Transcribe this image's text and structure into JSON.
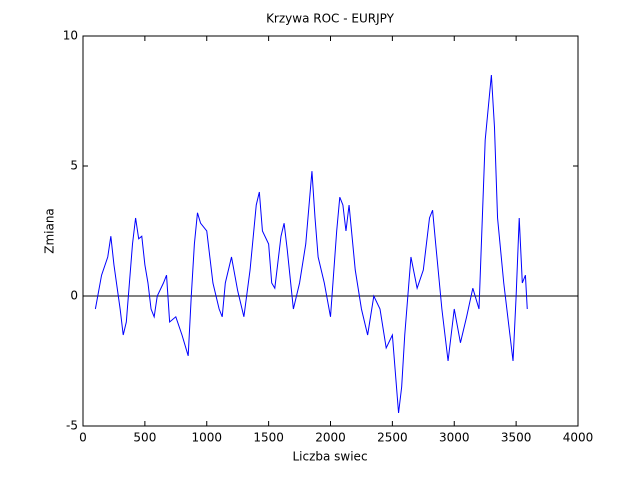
{
  "chart_data": {
    "type": "line",
    "title": "Krzywa ROC - EURJPY",
    "x_label": "Liczba swiec",
    "y_label": "Zmiana",
    "x": [
      100,
      150,
      200,
      225,
      250,
      300,
      325,
      350,
      375,
      400,
      425,
      450,
      475,
      500,
      525,
      550,
      575,
      600,
      650,
      675,
      700,
      750,
      800,
      850,
      875,
      900,
      925,
      950,
      1000,
      1025,
      1050,
      1100,
      1125,
      1150,
      1200,
      1250,
      1300,
      1350,
      1400,
      1425,
      1450,
      1500,
      1525,
      1550,
      1600,
      1625,
      1650,
      1700,
      1750,
      1800,
      1850,
      1875,
      1900,
      1950,
      2000,
      2050,
      2075,
      2100,
      2125,
      2150,
      2200,
      2250,
      2300,
      2350,
      2400,
      2450,
      2500,
      2550,
      2575,
      2600,
      2650,
      2700,
      2750,
      2800,
      2825,
      2850,
      2900,
      2950,
      3000,
      3050,
      3100,
      3150,
      3200,
      3250,
      3300,
      3325,
      3350,
      3400,
      3450,
      3475,
      3500,
      3525,
      3550,
      3575,
      3590
    ],
    "values": [
      -0.5,
      0.8,
      1.5,
      2.3,
      1.2,
      -0.5,
      -1.5,
      -1.0,
      0.5,
      2.0,
      3.0,
      2.2,
      2.3,
      1.2,
      0.5,
      -0.5,
      -0.8,
      0.0,
      0.5,
      0.8,
      -1.0,
      -0.8,
      -1.5,
      -2.3,
      0.0,
      2.0,
      3.2,
      2.8,
      2.5,
      1.5,
      0.5,
      -0.5,
      -0.8,
      0.5,
      1.5,
      0.2,
      -0.8,
      1.0,
      3.5,
      4.0,
      2.5,
      2.0,
      0.5,
      0.3,
      2.3,
      2.8,
      1.8,
      -0.5,
      0.5,
      2.0,
      4.8,
      3.0,
      1.5,
      0.5,
      -0.8,
      2.5,
      3.8,
      3.5,
      2.5,
      3.5,
      1.0,
      -0.5,
      -1.5,
      0.0,
      -0.5,
      -2.0,
      -1.5,
      -4.5,
      -3.5,
      -1.5,
      1.5,
      0.3,
      1.0,
      3.0,
      3.3,
      2.0,
      -0.5,
      -2.5,
      -0.5,
      -1.8,
      -0.8,
      0.3,
      -0.5,
      6.0,
      8.5,
      6.5,
      3.0,
      0.5,
      -1.5,
      -2.5,
      0.0,
      3.0,
      0.5,
      0.8,
      -0.5
    ],
    "color": "#0000ff",
    "reference_line": 0,
    "xlim": [
      0,
      4000
    ],
    "xticks": [
      0,
      500,
      1000,
      1500,
      2000,
      2500,
      3000,
      3500,
      4000
    ],
    "ylim": [
      -5,
      10
    ],
    "yticks": [
      -5,
      0,
      5,
      10
    ]
  }
}
